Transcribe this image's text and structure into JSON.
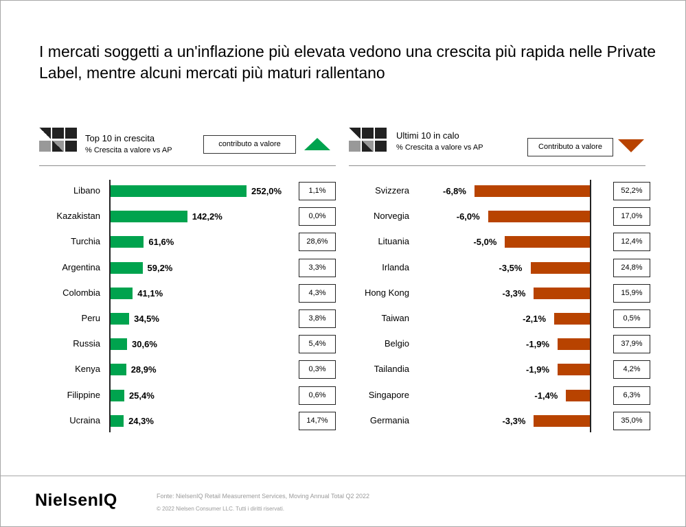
{
  "title": "I mercati soggetti a un'inflazione più elevata vedono una crescita più rapida nelle Private Label, mentre alcuni mercati più maturi rallentano",
  "colors": {
    "green": "#00a34e",
    "orange": "#b84300",
    "dark": "#222222",
    "grey": "#8c8c8c"
  },
  "left_panel": {
    "title": "Top 10 in crescita",
    "subtitle": "% Crescita a valore vs AP",
    "button": "contributo a valore",
    "indicator": "up-triangle-icon"
  },
  "right_panel": {
    "title": "Ultimi 10 in calo",
    "subtitle": "% Crescita a valore vs AP",
    "button": "Contributo a valore",
    "indicator": "down-triangle-icon"
  },
  "chart_data": [
    {
      "type": "bar",
      "orientation": "horizontal",
      "title": "Top 10 in crescita",
      "categories": [
        "Libano",
        "Kazakistan",
        "Turchia",
        "Argentina",
        "Colombia",
        "Peru",
        "Russia",
        "Kenya",
        "Filippine",
        "Ucraina"
      ],
      "values": [
        252.0,
        142.2,
        61.6,
        59.2,
        41.1,
        34.5,
        30.6,
        28.9,
        25.4,
        24.3
      ],
      "value_labels": [
        "252,0%",
        "142,2%",
        "61,6%",
        "59,2%",
        "41,1%",
        "34,5%",
        "30,6%",
        "28,9%",
        "25,4%",
        "24,3%"
      ],
      "contributions": [
        "1,1%",
        "0,0%",
        "28,6%",
        "3,3%",
        "4,3%",
        "3,8%",
        "5,4%",
        "0,3%",
        "0,6%",
        "14,7%"
      ],
      "color": "#00a34e",
      "xlim": [
        0,
        300
      ]
    },
    {
      "type": "bar",
      "orientation": "horizontal",
      "title": "Ultimi 10 in calo",
      "categories": [
        "Svizzera",
        "Norvegia",
        "Lituania",
        "Irlanda",
        "Hong Kong",
        "Taiwan",
        "Belgio",
        "Tailandia",
        "Singapore",
        "Germania"
      ],
      "values": [
        -6.8,
        -6.0,
        -5.0,
        -3.5,
        -3.3,
        -2.1,
        -1.9,
        -1.9,
        -1.4,
        -3.3
      ],
      "value_labels": [
        "-6,8%",
        "-6,0%",
        "-5,0%",
        "-3,5%",
        "-3,3%",
        "-2,1%",
        "-1,9%",
        "-1,9%",
        "-1,4%",
        "-3,3%"
      ],
      "contributions": [
        "52,2%",
        "17,0%",
        "12,4%",
        "24,8%",
        "15,9%",
        "0,5%",
        "37,9%",
        "4,2%",
        "6,3%",
        "35,0%"
      ],
      "color": "#b84300",
      "xlim": [
        -7,
        0
      ]
    }
  ],
  "footer": {
    "logo": "NielsenIQ",
    "source": "Fonte: NielsenIQ Retail Measurement Services, Moving Annual Total Q2 2022",
    "copyright": "© 2022 Nielsen Consumer LLC. Tutti i diritti riservati."
  }
}
